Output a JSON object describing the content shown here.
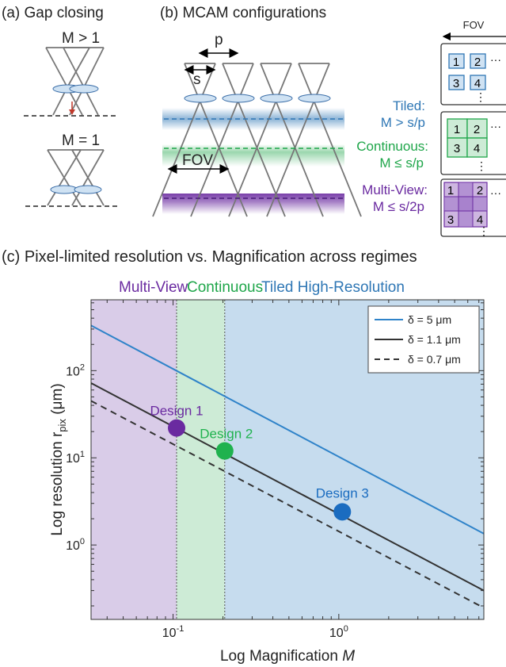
{
  "panel_a": {
    "title": "(a) Gap closing",
    "top_label": "M > 1",
    "bottom_label": "M = 1"
  },
  "panel_b": {
    "title": "(b) MCAM configurations",
    "p_label": "p",
    "s_label": "s",
    "fov_label": "FOV",
    "tiled_name": "Tiled:",
    "tiled_cond": "M > s/p",
    "continuous_name": "Continuous:",
    "continuous_cond": "M ≤ s/p",
    "multiview_name": "Multi-View:",
    "multiview_cond": "M ≤ s/2p",
    "fov_header": "FOV",
    "grid_numbers": [
      "1",
      "2",
      "3",
      "4"
    ],
    "ellipsis_h": "···",
    "ellipsis_v": "⋮"
  },
  "panel_c": {
    "title": "(c) Pixel-limited resolution vs. Magnification across regimes"
  },
  "colors": {
    "multiview": "#6a2aa0",
    "continuous": "#1fa64a",
    "tiled": "#2f77b5",
    "line_5": "#2f83c9",
    "line_11": "#333333",
    "design3": "#1a6cc0"
  },
  "chart_data": {
    "type": "line",
    "title": "",
    "xlabel": "Log Magnification",
    "xlabel_italic": "M",
    "ylabel": "Log resolution r",
    "ylabel_sub": "pix",
    "ylabel_unit": "(μm)",
    "xscale": "log",
    "yscale": "log",
    "xlim": [
      0.032,
      7.5
    ],
    "ylim": [
      0.14,
      650
    ],
    "x_ticks": [
      {
        "base": "10",
        "exp": "-1",
        "value": 0.1
      },
      {
        "base": "10",
        "exp": "0",
        "value": 1
      }
    ],
    "y_ticks": [
      {
        "base": "10",
        "exp": "0",
        "value": 1
      },
      {
        "base": "10",
        "exp": "1",
        "value": 10
      },
      {
        "base": "10",
        "exp": "2",
        "value": 100
      }
    ],
    "regions": [
      {
        "name": "Multi-View",
        "x_from": 0.032,
        "x_to": 0.105,
        "color": "#d9cce8"
      },
      {
        "name": "Continuous",
        "x_from": 0.105,
        "x_to": 0.205,
        "color": "#cdebd6"
      },
      {
        "name": "Tiled High-Resolution",
        "x_from": 0.205,
        "x_to": 7.5,
        "color": "#c6dcee"
      }
    ],
    "series": [
      {
        "name": "δ = 5 μm",
        "style": "solid",
        "color": "#2f83c9",
        "points": [
          [
            0.032,
            330
          ],
          [
            7.5,
            1.35
          ]
        ]
      },
      {
        "name": "δ = 1.1 μm",
        "style": "solid",
        "color": "#333333",
        "points": [
          [
            0.032,
            72
          ],
          [
            7.5,
            0.3
          ]
        ]
      },
      {
        "name": "δ = 0.7 μm",
        "style": "dashed",
        "color": "#333333",
        "points": [
          [
            0.032,
            45
          ],
          [
            7.5,
            0.19
          ]
        ]
      }
    ],
    "designs": [
      {
        "name": "Design 1",
        "x": 0.105,
        "y": 22,
        "color": "#6a2aa0"
      },
      {
        "name": "Design 2",
        "x": 0.205,
        "y": 12,
        "color": "#1fb24e"
      },
      {
        "name": "Design 3",
        "x": 1.05,
        "y": 2.4,
        "color": "#1a6cc0"
      }
    ],
    "legend_position": "top-right",
    "grid": false
  }
}
